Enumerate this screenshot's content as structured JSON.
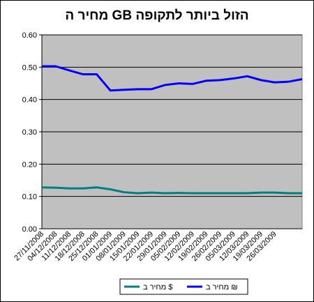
{
  "chart_data": {
    "type": "line",
    "title": "מחיר ה GB הזול ביותר לתקופה",
    "categories": [
      "27/11/2008",
      "04/12/2008",
      "11/12/2008",
      "18/12/2008",
      "25/12/2008",
      "01/01/2009",
      "08/01/2009",
      "15/01/2009",
      "22/01/2009",
      "29/01/2009",
      "05/02/2009",
      "12/02/2009",
      "19/02/2009",
      "26/02/2009",
      "05/03/2009",
      "12/03/2009",
      "19/03/2009",
      "26/03/2009",
      null,
      null
    ],
    "series": [
      {
        "name": "מחיר ב $",
        "color": "#008080",
        "values": [
          0.128,
          0.127,
          0.125,
          0.125,
          0.128,
          0.122,
          0.113,
          0.11,
          0.112,
          0.11,
          0.111,
          0.11,
          0.11,
          0.11,
          0.11,
          0.11,
          0.112,
          0.112,
          0.11,
          0.11
        ]
      },
      {
        "name": "מחיר ב ₪",
        "color": "#0000ff",
        "values": [
          0.503,
          0.503,
          0.49,
          0.478,
          0.478,
          0.428,
          0.43,
          0.432,
          0.432,
          0.445,
          0.45,
          0.448,
          0.458,
          0.46,
          0.465,
          0.472,
          0.46,
          0.453,
          0.455,
          0.463
        ]
      }
    ],
    "ylim": [
      0,
      0.6
    ],
    "yticks": [
      {
        "value": 0,
        "label": "0.00"
      },
      {
        "value": 0.1,
        "label": "0.10"
      },
      {
        "value": 0.2,
        "label": "0.20"
      },
      {
        "value": 0.3,
        "label": "0.30"
      },
      {
        "value": 0.4,
        "label": "0.40"
      },
      {
        "value": 0.5,
        "label": "0.50"
      },
      {
        "value": 0.6,
        "label": "0.60"
      }
    ],
    "grid": true,
    "plot_background": "#c0c0c0",
    "legend": "bottom"
  }
}
